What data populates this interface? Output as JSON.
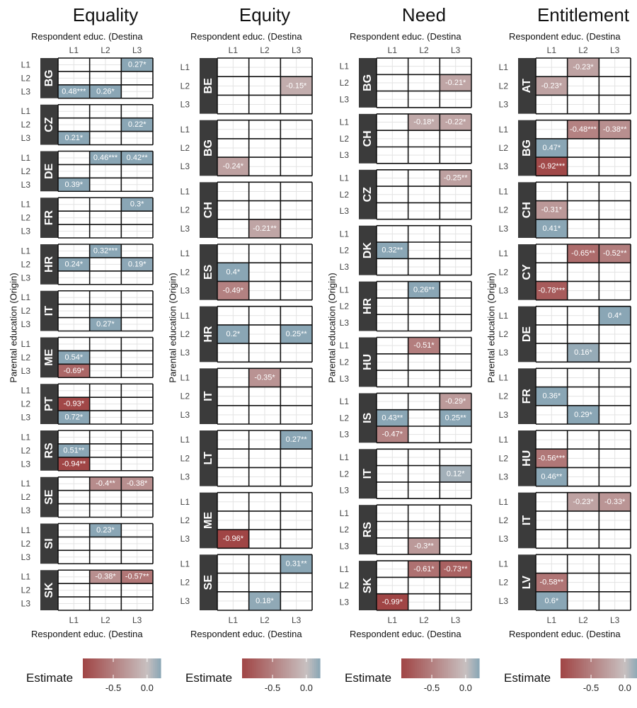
{
  "chart_data": {
    "type": "heatmap",
    "y_axis_label": "Parental education (Origin)",
    "x_axis_label": "Respondent educ. (Destina",
    "levels": [
      "L1",
      "L2",
      "L3"
    ],
    "legend": {
      "title": "Estimate",
      "ticks": [
        "-0.5",
        "0.0"
      ],
      "tick_values": [
        -0.5,
        0.0
      ],
      "range": [
        -0.95,
        0.2
      ],
      "low_color": "#a04545",
      "mid_color": "#c8c0c0",
      "high_color": "#8aa6b5"
    },
    "panels": [
      {
        "title": "Equality",
        "legend_ticks": [
          "-0.5",
          "0.0"
        ],
        "countries": [
          {
            "code": "BG",
            "cells": [
              {
                "row": 0,
                "col": 2,
                "value": 0.27,
                "label": "0.27*"
              },
              {
                "row": 2,
                "col": 0,
                "value": 0.48,
                "label": "0.48***"
              },
              {
                "row": 2,
                "col": 1,
                "value": 0.26,
                "label": "0.26*"
              }
            ]
          },
          {
            "code": "CZ",
            "cells": [
              {
                "row": 1,
                "col": 2,
                "value": 0.22,
                "label": "0.22*"
              },
              {
                "row": 2,
                "col": 0,
                "value": 0.21,
                "label": "0.21*"
              }
            ]
          },
          {
            "code": "DE",
            "cells": [
              {
                "row": 0,
                "col": 1,
                "value": 0.46,
                "label": "0.46***"
              },
              {
                "row": 0,
                "col": 2,
                "value": 0.42,
                "label": "0.42**"
              },
              {
                "row": 2,
                "col": 0,
                "value": 0.39,
                "label": "0.39*"
              }
            ]
          },
          {
            "code": "FR",
            "cells": [
              {
                "row": 0,
                "col": 2,
                "value": 0.3,
                "label": "0.3*"
              }
            ]
          },
          {
            "code": "HR",
            "cells": [
              {
                "row": 0,
                "col": 1,
                "value": 0.32,
                "label": "0.32***"
              },
              {
                "row": 1,
                "col": 0,
                "value": 0.24,
                "label": "0.24*"
              },
              {
                "row": 1,
                "col": 2,
                "value": 0.19,
                "label": "0.19*"
              }
            ]
          },
          {
            "code": "IT",
            "cells": [
              {
                "row": 2,
                "col": 1,
                "value": 0.27,
                "label": "0.27*"
              }
            ]
          },
          {
            "code": "ME",
            "cells": [
              {
                "row": 1,
                "col": 0,
                "value": 0.54,
                "label": "0.54*"
              },
              {
                "row": 2,
                "col": 0,
                "value": -0.69,
                "label": "-0.69*"
              }
            ]
          },
          {
            "code": "PT",
            "cells": [
              {
                "row": 1,
                "col": 0,
                "value": -0.93,
                "label": "-0.93*"
              },
              {
                "row": 2,
                "col": 0,
                "value": 0.72,
                "label": "0.72*"
              }
            ]
          },
          {
            "code": "RS",
            "cells": [
              {
                "row": 1,
                "col": 0,
                "value": 0.51,
                "label": "0.51**"
              },
              {
                "row": 2,
                "col": 0,
                "value": -0.94,
                "label": "-0.94**"
              }
            ]
          },
          {
            "code": "SE",
            "cells": [
              {
                "row": 0,
                "col": 1,
                "value": -0.4,
                "label": "-0.4**"
              },
              {
                "row": 0,
                "col": 2,
                "value": -0.38,
                "label": "-0.38*"
              }
            ]
          },
          {
            "code": "SI",
            "cells": [
              {
                "row": 0,
                "col": 1,
                "value": 0.23,
                "label": "0.23*"
              }
            ]
          },
          {
            "code": "SK",
            "cells": [
              {
                "row": 0,
                "col": 1,
                "value": -0.38,
                "label": "-0.38*"
              },
              {
                "row": 0,
                "col": 2,
                "value": -0.57,
                "label": "-0.57**"
              }
            ]
          }
        ]
      },
      {
        "title": "Equity",
        "legend_ticks": [
          "-0.5",
          "0.0"
        ],
        "countries": [
          {
            "code": "BE",
            "cells": [
              {
                "row": 1,
                "col": 2,
                "value": -0.15,
                "label": "-0.15*"
              }
            ]
          },
          {
            "code": "BG",
            "cells": [
              {
                "row": 2,
                "col": 0,
                "value": -0.24,
                "label": "-0.24*"
              }
            ]
          },
          {
            "code": "CH",
            "cells": [
              {
                "row": 2,
                "col": 1,
                "value": -0.21,
                "label": "-0.21**"
              }
            ]
          },
          {
            "code": "ES",
            "cells": [
              {
                "row": 1,
                "col": 0,
                "value": 0.4,
                "label": "0.4*"
              },
              {
                "row": 2,
                "col": 0,
                "value": -0.49,
                "label": "-0.49*"
              }
            ]
          },
          {
            "code": "HR",
            "cells": [
              {
                "row": 1,
                "col": 0,
                "value": 0.2,
                "label": "0.2*"
              },
              {
                "row": 1,
                "col": 2,
                "value": 0.25,
                "label": "0.25**"
              }
            ]
          },
          {
            "code": "IT",
            "cells": [
              {
                "row": 0,
                "col": 1,
                "value": -0.35,
                "label": "-0.35*"
              }
            ]
          },
          {
            "code": "LT",
            "cells": [
              {
                "row": 0,
                "col": 2,
                "value": 0.27,
                "label": "0.27**"
              }
            ]
          },
          {
            "code": "ME",
            "cells": [
              {
                "row": 2,
                "col": 0,
                "value": -0.96,
                "label": "-0.96*"
              }
            ]
          },
          {
            "code": "SE",
            "cells": [
              {
                "row": 0,
                "col": 2,
                "value": 0.31,
                "label": "0.31**"
              },
              {
                "row": 2,
                "col": 1,
                "value": 0.18,
                "label": "0.18*"
              }
            ]
          }
        ]
      },
      {
        "title": "Need",
        "legend_ticks": [
          "-0.5",
          "0.0"
        ],
        "countries": [
          {
            "code": "BG",
            "cells": [
              {
                "row": 1,
                "col": 2,
                "value": -0.21,
                "label": "-0.21*"
              }
            ]
          },
          {
            "code": "CH",
            "cells": [
              {
                "row": 0,
                "col": 1,
                "value": -0.18,
                "label": "-0.18*"
              },
              {
                "row": 0,
                "col": 2,
                "value": -0.22,
                "label": "-0.22*"
              }
            ]
          },
          {
            "code": "CZ",
            "cells": [
              {
                "row": 0,
                "col": 2,
                "value": -0.25,
                "label": "-0.25**"
              }
            ]
          },
          {
            "code": "DK",
            "cells": [
              {
                "row": 1,
                "col": 0,
                "value": 0.32,
                "label": "0.32**"
              }
            ]
          },
          {
            "code": "HR",
            "cells": [
              {
                "row": 0,
                "col": 1,
                "value": 0.26,
                "label": "0.26**"
              }
            ]
          },
          {
            "code": "HU",
            "cells": [
              {
                "row": 0,
                "col": 1,
                "value": -0.51,
                "label": "-0.51*"
              }
            ]
          },
          {
            "code": "IS",
            "cells": [
              {
                "row": 0,
                "col": 2,
                "value": -0.29,
                "label": "-0.29*"
              },
              {
                "row": 1,
                "col": 0,
                "value": 0.43,
                "label": "0.43**"
              },
              {
                "row": 1,
                "col": 2,
                "value": 0.25,
                "label": "0.25**"
              },
              {
                "row": 2,
                "col": 0,
                "value": -0.47,
                "label": "-0.47*"
              }
            ]
          },
          {
            "code": "IT",
            "cells": [
              {
                "row": 1,
                "col": 2,
                "value": 0.12,
                "label": "0.12*"
              }
            ]
          },
          {
            "code": "RS",
            "cells": [
              {
                "row": 2,
                "col": 1,
                "value": -0.3,
                "label": "-0.3**"
              }
            ]
          },
          {
            "code": "SK",
            "cells": [
              {
                "row": 0,
                "col": 1,
                "value": -0.61,
                "label": "-0.61*"
              },
              {
                "row": 0,
                "col": 2,
                "value": -0.73,
                "label": "-0.73**"
              },
              {
                "row": 2,
                "col": 0,
                "value": -0.99,
                "label": "-0.99*"
              }
            ]
          }
        ]
      },
      {
        "title": "Entitlement",
        "legend_ticks": [
          "-0.5",
          "0.0"
        ],
        "countries": [
          {
            "code": "AT",
            "cells": [
              {
                "row": 0,
                "col": 1,
                "value": -0.23,
                "label": "-0.23*"
              },
              {
                "row": 1,
                "col": 0,
                "value": -0.23,
                "label": "-0.23*"
              }
            ]
          },
          {
            "code": "BG",
            "cells": [
              {
                "row": 0,
                "col": 1,
                "value": -0.48,
                "label": "-0.48***"
              },
              {
                "row": 0,
                "col": 2,
                "value": -0.38,
                "label": "-0.38**"
              },
              {
                "row": 1,
                "col": 0,
                "value": 0.47,
                "label": "0.47*"
              },
              {
                "row": 2,
                "col": 0,
                "value": -0.92,
                "label": "-0.92***"
              }
            ]
          },
          {
            "code": "CH",
            "cells": [
              {
                "row": 1,
                "col": 0,
                "value": -0.31,
                "label": "-0.31*"
              },
              {
                "row": 2,
                "col": 0,
                "value": 0.41,
                "label": "0.41*"
              }
            ]
          },
          {
            "code": "CY",
            "cells": [
              {
                "row": 0,
                "col": 1,
                "value": -0.65,
                "label": "-0.65**"
              },
              {
                "row": 0,
                "col": 2,
                "value": -0.52,
                "label": "-0.52**"
              },
              {
                "row": 2,
                "col": 0,
                "value": -0.78,
                "label": "-0.78***"
              }
            ]
          },
          {
            "code": "DE",
            "cells": [
              {
                "row": 0,
                "col": 2,
                "value": 0.4,
                "label": "0.4*"
              },
              {
                "row": 2,
                "col": 1,
                "value": 0.16,
                "label": "0.16*"
              }
            ]
          },
          {
            "code": "FR",
            "cells": [
              {
                "row": 1,
                "col": 0,
                "value": 0.36,
                "label": "0.36*"
              },
              {
                "row": 2,
                "col": 1,
                "value": 0.29,
                "label": "0.29*"
              }
            ]
          },
          {
            "code": "HU",
            "cells": [
              {
                "row": 1,
                "col": 0,
                "value": -0.56,
                "label": "-0.56***"
              },
              {
                "row": 2,
                "col": 0,
                "value": 0.46,
                "label": "0.46**"
              }
            ]
          },
          {
            "code": "IT",
            "cells": [
              {
                "row": 0,
                "col": 1,
                "value": -0.23,
                "label": "-0.23*"
              },
              {
                "row": 0,
                "col": 2,
                "value": -0.33,
                "label": "-0.33*"
              }
            ]
          },
          {
            "code": "LV",
            "cells": [
              {
                "row": 1,
                "col": 0,
                "value": -0.58,
                "label": "-0.58**"
              },
              {
                "row": 2,
                "col": 0,
                "value": 0.6,
                "label": "0.6*"
              }
            ]
          }
        ]
      }
    ]
  }
}
